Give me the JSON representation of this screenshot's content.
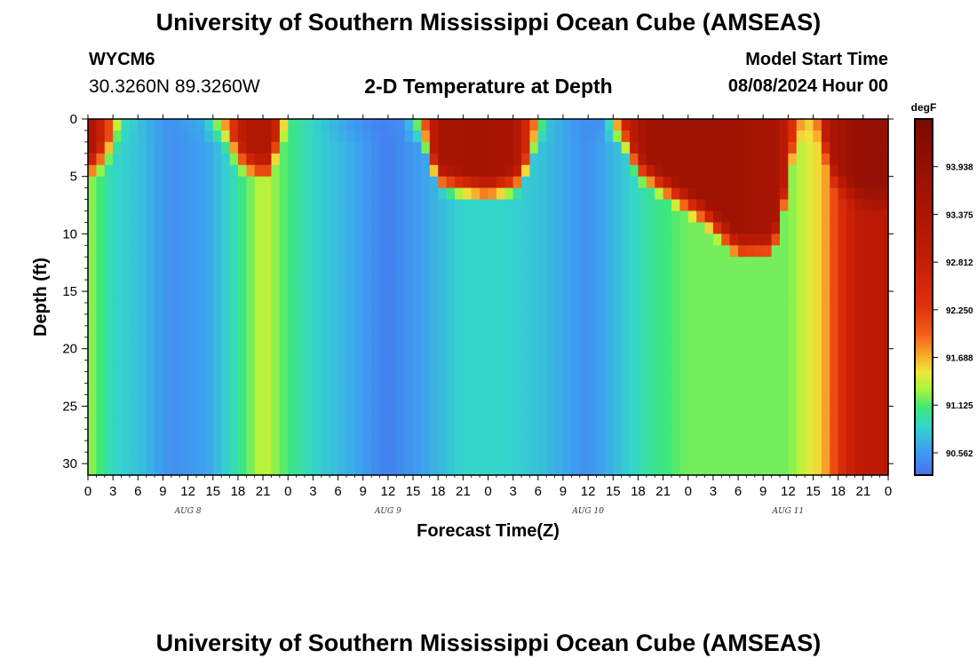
{
  "page": {
    "title_top": "University of Southern Mississippi Ocean Cube (AMSEAS)",
    "title_bottom": "University of Southern Mississippi Ocean Cube (AMSEAS)",
    "station_id": "WYCM6",
    "coordinates": "30.3260N  89.3260W",
    "plot_title": "2-D Temperature at Depth",
    "model_start_label": "Model Start Time",
    "model_start_value": "08/08/2024 Hour 00"
  },
  "chart_data": {
    "type": "heatmap",
    "title": "2-D Temperature at Depth",
    "xlabel": "Forecast Time(Z)",
    "ylabel": "Depth (ft)",
    "x_ticks": [
      "0",
      "3",
      "6",
      "9",
      "12",
      "15",
      "18",
      "21",
      "0",
      "3",
      "6",
      "9",
      "12",
      "15",
      "18",
      "21",
      "0",
      "3",
      "6",
      "9",
      "12",
      "15",
      "18",
      "21",
      "0",
      "3",
      "6",
      "9",
      "12",
      "15",
      "18",
      "21",
      "0"
    ],
    "x_range_hours": [
      0,
      96
    ],
    "day_labels": [
      {
        "label": "AUG 8",
        "hour": 12
      },
      {
        "label": "AUG 9",
        "hour": 36
      },
      {
        "label": "AUG 10",
        "hour": 60
      },
      {
        "label": "AUG 11",
        "hour": 84
      }
    ],
    "y_ticks": [
      0,
      5,
      10,
      15,
      20,
      25,
      30
    ],
    "y_range_ft": [
      0,
      31
    ],
    "y_inverted": true,
    "colorbar": {
      "unit": "degF",
      "range": [
        90.3,
        94.5
      ],
      "ticks": [
        "93.938",
        "93.375",
        "92.812",
        "92.250",
        "91.688",
        "91.125",
        "90.562"
      ]
    },
    "surface_temperature_degF": [
      {
        "hour": 0,
        "value": 93.6
      },
      {
        "hour": 2,
        "value": 92.5
      },
      {
        "hour": 4,
        "value": 91.0
      },
      {
        "hour": 7,
        "value": 90.7
      },
      {
        "hour": 10,
        "value": 90.5
      },
      {
        "hour": 14,
        "value": 90.7
      },
      {
        "hour": 17,
        "value": 92.0
      },
      {
        "hour": 19,
        "value": 93.3
      },
      {
        "hour": 22,
        "value": 93.3
      },
      {
        "hour": 24,
        "value": 91.1
      },
      {
        "hour": 27,
        "value": 90.9
      },
      {
        "hour": 31,
        "value": 90.6
      },
      {
        "hour": 35,
        "value": 90.4
      },
      {
        "hour": 38,
        "value": 90.5
      },
      {
        "hour": 40,
        "value": 91.6
      },
      {
        "hour": 42,
        "value": 93.5
      },
      {
        "hour": 46,
        "value": 93.6
      },
      {
        "hour": 51,
        "value": 93.5
      },
      {
        "hour": 53,
        "value": 92.3
      },
      {
        "hour": 55,
        "value": 90.8
      },
      {
        "hour": 59,
        "value": 90.5
      },
      {
        "hour": 62,
        "value": 90.5
      },
      {
        "hour": 64,
        "value": 92.5
      },
      {
        "hour": 67,
        "value": 93.7
      },
      {
        "hour": 72,
        "value": 93.8
      },
      {
        "hour": 78,
        "value": 93.7
      },
      {
        "hour": 83,
        "value": 93.4
      },
      {
        "hour": 85,
        "value": 92.0
      },
      {
        "hour": 87,
        "value": 91.5
      },
      {
        "hour": 89,
        "value": 93.4
      },
      {
        "hour": 92,
        "value": 93.9
      },
      {
        "hour": 96,
        "value": 93.9
      }
    ],
    "bottom_temperature_degF": [
      {
        "hour": 0,
        "value": 91.3
      },
      {
        "hour": 3,
        "value": 90.9
      },
      {
        "hour": 6,
        "value": 90.8
      },
      {
        "hour": 10,
        "value": 90.5
      },
      {
        "hour": 14,
        "value": 90.6
      },
      {
        "hour": 18,
        "value": 91.0
      },
      {
        "hour": 21,
        "value": 91.4
      },
      {
        "hour": 24,
        "value": 91.1
      },
      {
        "hour": 27,
        "value": 90.9
      },
      {
        "hour": 31,
        "value": 90.7
      },
      {
        "hour": 36,
        "value": 90.4
      },
      {
        "hour": 40,
        "value": 90.6
      },
      {
        "hour": 45,
        "value": 90.9
      },
      {
        "hour": 50,
        "value": 90.9
      },
      {
        "hour": 54,
        "value": 90.8
      },
      {
        "hour": 60,
        "value": 90.5
      },
      {
        "hour": 64,
        "value": 90.8
      },
      {
        "hour": 67,
        "value": 91.0
      },
      {
        "hour": 72,
        "value": 91.2
      },
      {
        "hour": 78,
        "value": 91.2
      },
      {
        "hour": 84,
        "value": 91.2
      },
      {
        "hour": 88,
        "value": 91.6
      },
      {
        "hour": 91,
        "value": 92.6
      },
      {
        "hour": 93,
        "value": 93.0
      },
      {
        "hour": 96,
        "value": 93.1
      }
    ],
    "warm_surface_layer_depth_ft": [
      {
        "hour": 0,
        "value": 3
      },
      {
        "hour": 2,
        "value": 2
      },
      {
        "hour": 4,
        "value": 0
      },
      {
        "hour": 16,
        "value": 0
      },
      {
        "hour": 18,
        "value": 2
      },
      {
        "hour": 20,
        "value": 3
      },
      {
        "hour": 22,
        "value": 3
      },
      {
        "hour": 23,
        "value": 0
      },
      {
        "hour": 40,
        "value": 0
      },
      {
        "hour": 42,
        "value": 4
      },
      {
        "hour": 48,
        "value": 5
      },
      {
        "hour": 52,
        "value": 4
      },
      {
        "hour": 54,
        "value": 0
      },
      {
        "hour": 64,
        "value": 0
      },
      {
        "hour": 66,
        "value": 3
      },
      {
        "hour": 70,
        "value": 5
      },
      {
        "hour": 74,
        "value": 7
      },
      {
        "hour": 78,
        "value": 10
      },
      {
        "hour": 82,
        "value": 10
      },
      {
        "hour": 83,
        "value": 8
      },
      {
        "hour": 85,
        "value": 0
      },
      {
        "hour": 88,
        "value": 0
      },
      {
        "hour": 89,
        "value": 3
      },
      {
        "hour": 91,
        "value": 5
      },
      {
        "hour": 93,
        "value": 6
      },
      {
        "hour": 96,
        "value": 6
      }
    ]
  }
}
